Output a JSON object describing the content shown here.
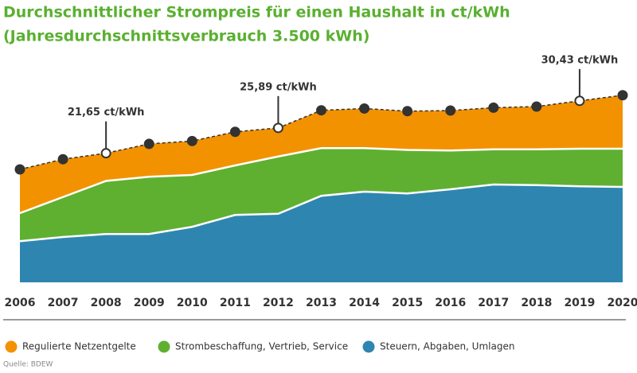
{
  "chart_data": {
    "type": "stacked-area",
    "title": "Durchschnittlicher Strompreis für einen Haushalt in ct/kWh",
    "subtitle": "(Jahresdurchschnittsverbrauch 3.500 kWh)",
    "categories": [
      "2006",
      "2007",
      "2008",
      "2009",
      "2010",
      "2011",
      "2012",
      "2013",
      "2014",
      "2015",
      "2016",
      "2017",
      "2018",
      "2019",
      "2020"
    ],
    "series": [
      {
        "name": "Regulierte Netzentgelte",
        "color": "#f39200",
        "values": [
          7.33,
          6.34,
          4.65,
          5.51,
          5.69,
          5.63,
          4.79,
          6.34,
          6.64,
          6.5,
          6.7,
          6.98,
          7.17,
          8.03,
          8.97
        ]
      },
      {
        "name": "Strombeschaffung, Vertrieb, Service",
        "color": "#5fb031",
        "values": [
          4.7,
          6.7,
          8.9,
          9.6,
          8.7,
          8.3,
          9.6,
          8.0,
          7.3,
          7.3,
          6.5,
          5.9,
          6.0,
          6.3,
          6.4
        ]
      },
      {
        "name": "Steuern, Abgaben, Umlagen",
        "color": "#2e86b0",
        "values": [
          6.9,
          7.6,
          8.1,
          8.1,
          9.3,
          11.3,
          11.5,
          14.5,
          15.2,
          14.9,
          15.6,
          16.4,
          16.3,
          16.1,
          16.0
        ]
      }
    ],
    "annotations": [
      {
        "x": "2008",
        "value": 21.65,
        "label": "21,65 ct/kWh"
      },
      {
        "x": "2012",
        "value": 25.89,
        "label": "25,89 ct/kWh"
      },
      {
        "x": "2019",
        "value": 30.43,
        "label": "30,43 ct/kWh"
      }
    ],
    "source": "Quelle: BDEW"
  }
}
